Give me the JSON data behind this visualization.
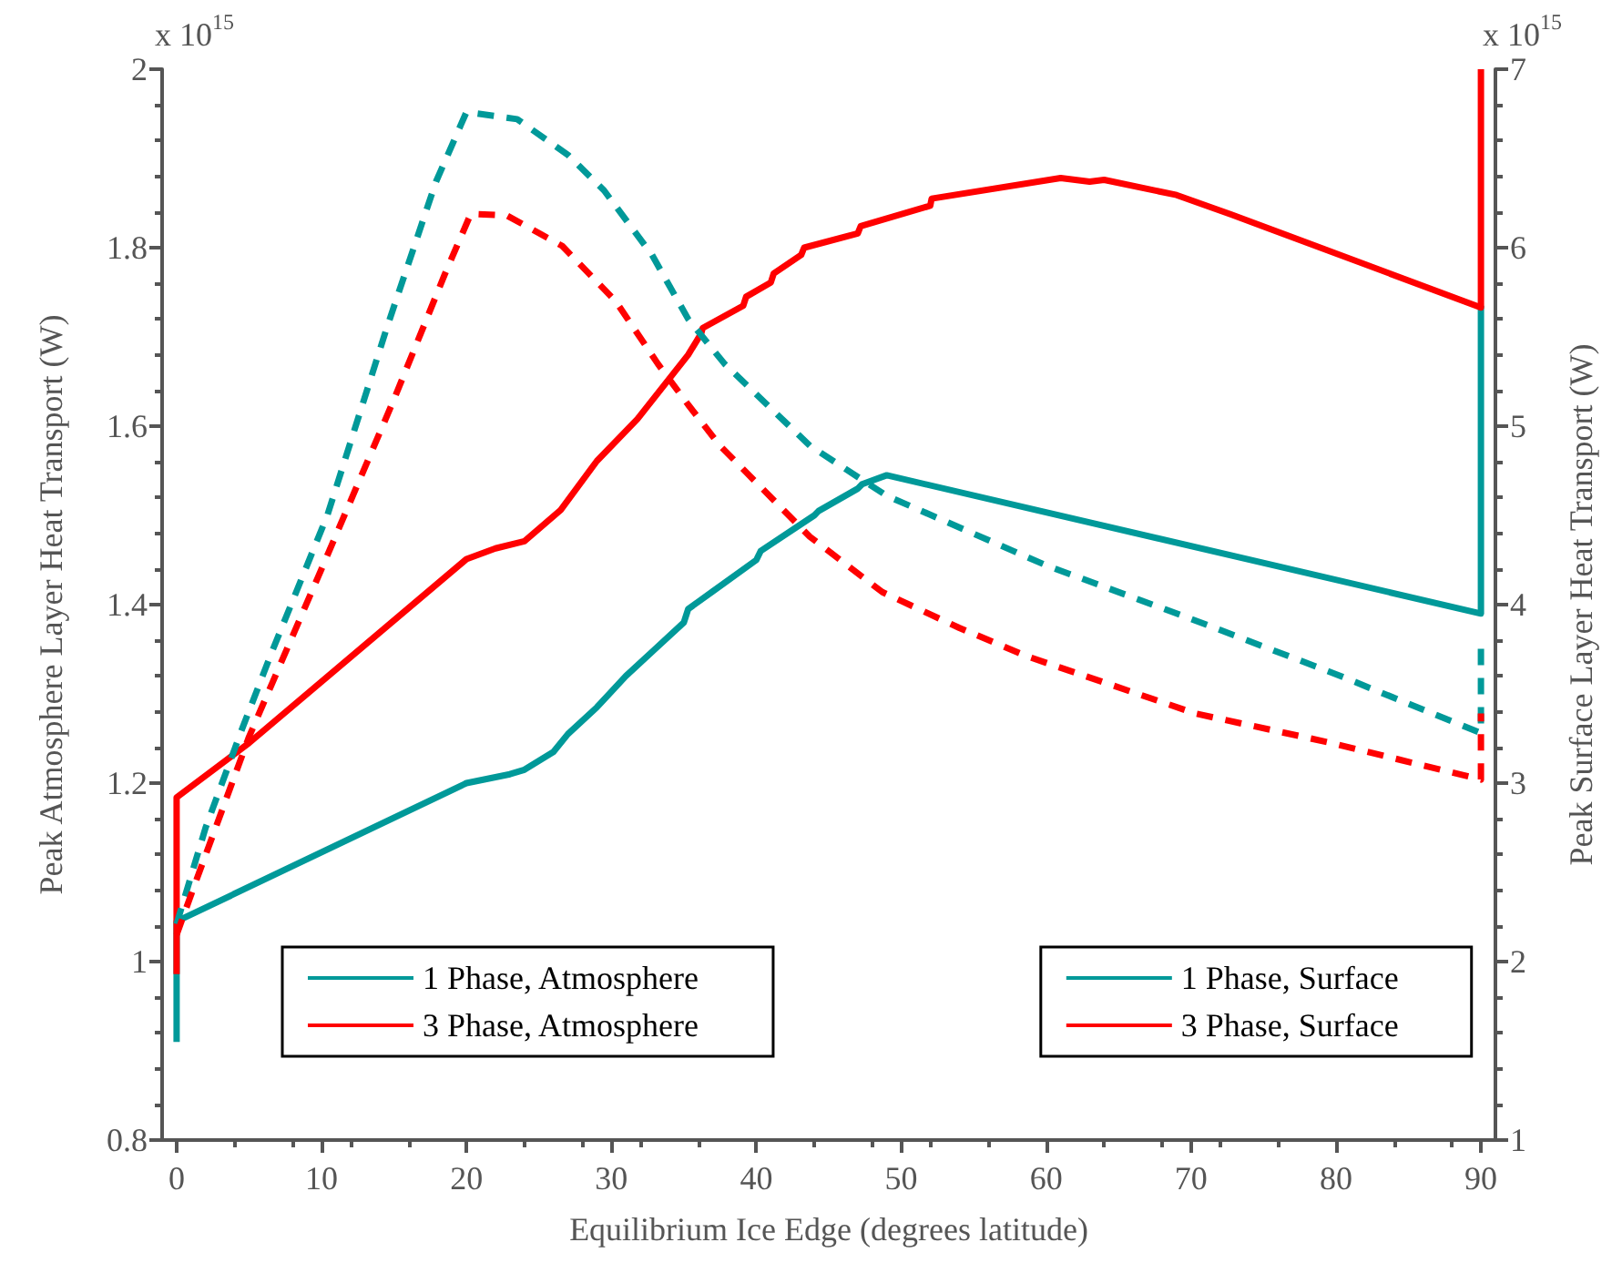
{
  "chart_data": {
    "type": "line",
    "xlabel": "Equilibrium Ice Edge (degrees latitude)",
    "ylabel": "Peak Atmosphere Layer Heat Transport (W)",
    "y2label": "Peak Surface Layer Heat Transport (W)",
    "annotations": [
      "x 10$^{15}$",
      "x 10$^{15}$"
    ],
    "xlim": [
      -1,
      91
    ],
    "xticks": [
      0,
      10,
      20,
      30,
      40,
      50,
      60,
      70,
      80,
      90
    ],
    "ylim": [
      0.8,
      2
    ],
    "yticks": [
      0.8,
      1,
      1.2,
      1.4,
      1.6,
      1.8,
      2
    ],
    "y2lim": [
      1,
      7
    ],
    "y2ticks": [
      1,
      2,
      3,
      4,
      5,
      6,
      7
    ],
    "grid": false,
    "legend": "bottom",
    "marker": "none",
    "series": [
      {
        "name": "1 Phase, Atmosphere",
        "color": "#009999",
        "line_style": "solid",
        "x": [
          0,
          0,
          20,
          23,
          24,
          26,
          27,
          29,
          31,
          33,
          35,
          35.3,
          37,
          40,
          40.3,
          44,
          44.3,
          47,
          47.3,
          49,
          90,
          90
        ],
        "values": [
          0.91,
          1.045,
          1.2,
          1.21,
          1.215,
          1.235,
          1.255,
          1.285,
          1.32,
          1.35,
          1.38,
          1.395,
          1.415,
          1.45,
          1.46,
          1.5,
          1.505,
          1.53,
          1.535,
          1.545,
          1.39,
          1.735
        ]
      },
      {
        "name": "3 Phase, Atmosphere",
        "color": "#ff0000",
        "line_style": "solid",
        "x": [
          0,
          0,
          5,
          20,
          22,
          24,
          26.5,
          29,
          31.8,
          35.3,
          36.2,
          36.3,
          39.1,
          39.3,
          41,
          41.2,
          43.1,
          43.3,
          47,
          47.2,
          52,
          52.1,
          61,
          63,
          64,
          69,
          72.8,
          90,
          90
        ],
        "values": [
          0.986,
          1.184,
          1.245,
          1.451,
          1.463,
          1.471,
          1.506,
          1.561,
          1.608,
          1.68,
          1.704,
          1.71,
          1.735,
          1.745,
          1.761,
          1.771,
          1.792,
          1.8,
          1.816,
          1.824,
          1.847,
          1.855,
          1.878,
          1.874,
          1.876,
          1.859,
          1.837,
          1.733,
          2.0
        ]
      },
      {
        "name": "1 Phase, Surface",
        "color": "#009999",
        "line_style": "dashed",
        "axis": "y2",
        "x": [
          0,
          2,
          4.5,
          6.6,
          10.4,
          14.5,
          17.9,
          20,
          23.5,
          27,
          29.5,
          32.8,
          35.3,
          37.8,
          43.7,
          49,
          60,
          70,
          80,
          90,
          90
        ],
        "values": [
          2.21,
          2.75,
          3.3,
          3.74,
          4.5,
          5.55,
          6.37,
          6.76,
          6.72,
          6.52,
          6.32,
          5.96,
          5.6,
          5.35,
          4.89,
          4.61,
          4.22,
          3.92,
          3.61,
          3.28,
          3.8
        ]
      },
      {
        "name": "3 Phase, Surface",
        "color": "#ff0000",
        "line_style": "dashed",
        "axis": "y2",
        "x": [
          0,
          1.2,
          5,
          10,
          15,
          18.5,
          20.3,
          22.8,
          26.6,
          30.3,
          33.2,
          35.3,
          37.5,
          43.7,
          48.7,
          54,
          58.7,
          70.3,
          79.4,
          90,
          90
        ],
        "values": [
          2.15,
          2.42,
          3.26,
          4.2,
          5.15,
          5.85,
          6.19,
          6.18,
          6.01,
          5.7,
          5.35,
          5.12,
          4.89,
          4.38,
          4.07,
          3.87,
          3.71,
          3.39,
          3.23,
          3.02,
          3.39
        ]
      }
    ]
  }
}
